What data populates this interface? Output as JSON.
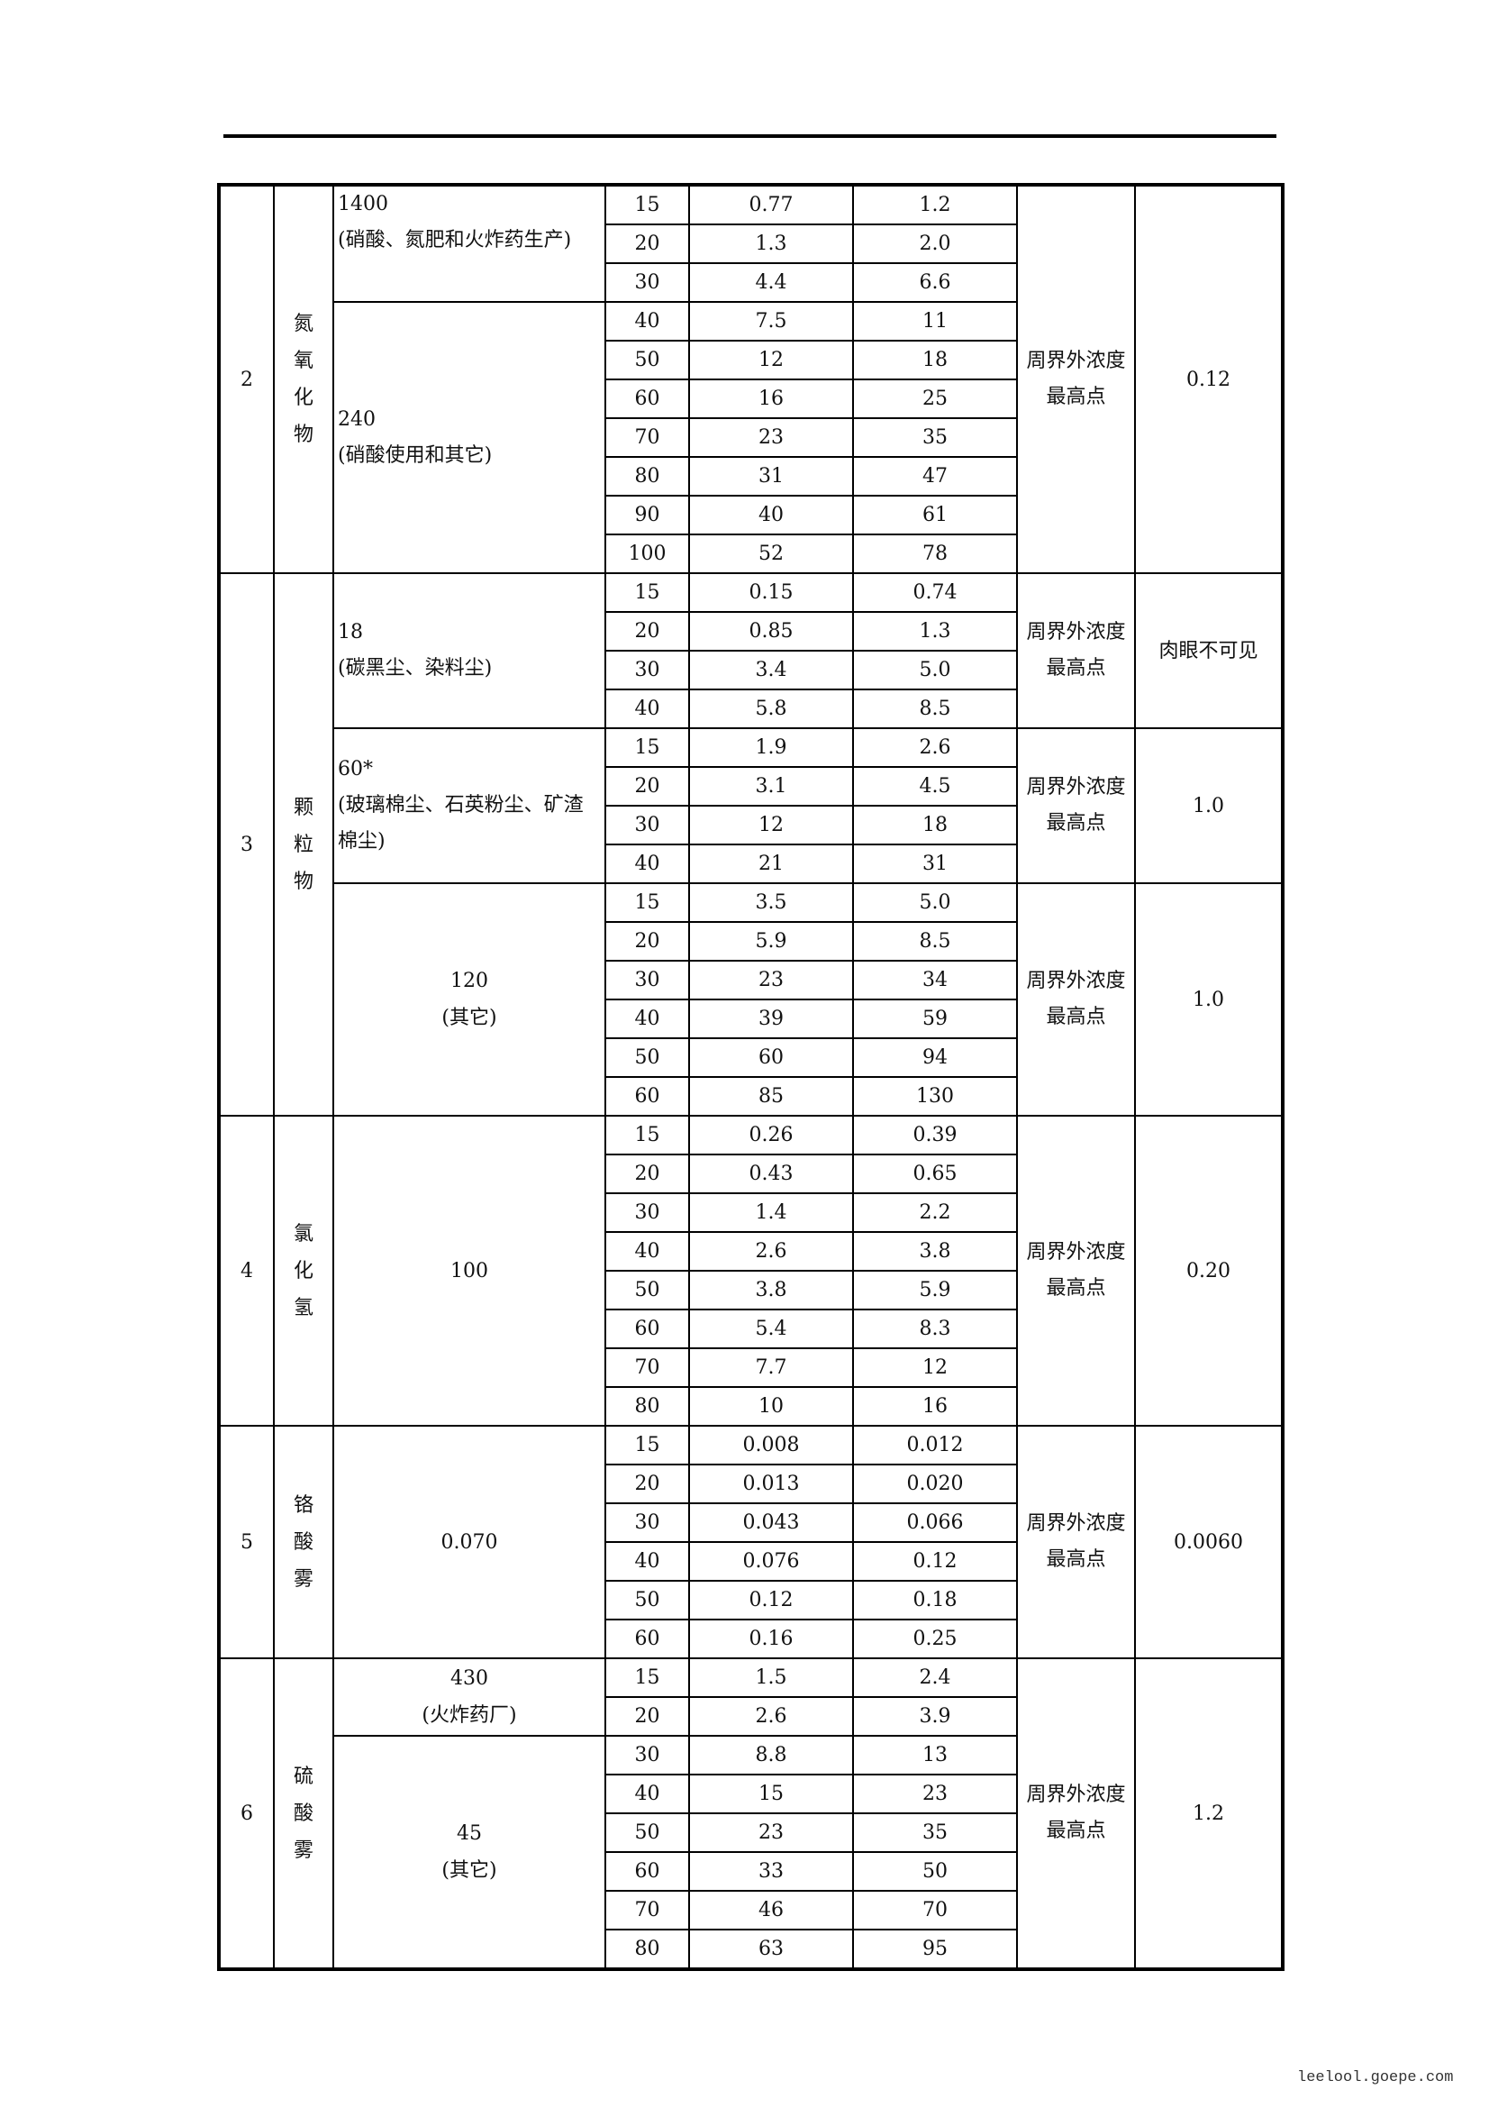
{
  "groups": [
    {
      "no": "2",
      "name": "氮氧化物",
      "blocks": [
        {
          "location": "周界外浓度最高点",
          "limit": "0.12",
          "standards": [
            {
              "value": "1400",
              "note": "(硝酸、氮肥和火炸药生产)",
              "rows": [
                [
                  "15",
                  "0.77",
                  "1.2"
                ],
                [
                  "20",
                  "1.3",
                  "2.0"
                ],
                [
                  "30",
                  "4.4",
                  "6.6"
                ]
              ]
            },
            {
              "value": "240",
              "note": "(硝酸使用和其它)",
              "rows": [
                [
                  "40",
                  "7.5",
                  "11"
                ],
                [
                  "50",
                  "12",
                  "18"
                ],
                [
                  "60",
                  "16",
                  "25"
                ],
                [
                  "70",
                  "23",
                  "35"
                ],
                [
                  "80",
                  "31",
                  "47"
                ],
                [
                  "90",
                  "40",
                  "61"
                ],
                [
                  "100",
                  "52",
                  "78"
                ]
              ]
            }
          ]
        }
      ]
    },
    {
      "no": "3",
      "name": "颗粒物",
      "blocks": [
        {
          "location": "周界外浓度最高点",
          "limit": "肉眼不可见",
          "standards": [
            {
              "value": "18",
              "note": "(碳黑尘、染料尘)",
              "rows": [
                [
                  "15",
                  "0.15",
                  "0.74"
                ],
                [
                  "20",
                  "0.85",
                  "1.3"
                ],
                [
                  "30",
                  "3.4",
                  "5.0"
                ],
                [
                  "40",
                  "5.8",
                  "8.5"
                ]
              ]
            }
          ]
        },
        {
          "location": "周界外浓度最高点",
          "limit": "1.0",
          "standards": [
            {
              "value": "60*",
              "note": "(玻璃棉尘、石英粉尘、矿渣棉尘)",
              "rows": [
                [
                  "15",
                  "1.9",
                  "2.6"
                ],
                [
                  "20",
                  "3.1",
                  "4.5"
                ],
                [
                  "30",
                  "12",
                  "18"
                ],
                [
                  "40",
                  "21",
                  "31"
                ]
              ]
            }
          ]
        },
        {
          "location": "周界外浓度最高点",
          "limit": "1.0",
          "standards": [
            {
              "value": "120",
              "note": "(其它)",
              "rows": [
                [
                  "15",
                  "3.5",
                  "5.0"
                ],
                [
                  "20",
                  "5.9",
                  "8.5"
                ],
                [
                  "30",
                  "23",
                  "34"
                ],
                [
                  "40",
                  "39",
                  "59"
                ],
                [
                  "50",
                  "60",
                  "94"
                ],
                [
                  "60",
                  "85",
                  "130"
                ]
              ]
            }
          ]
        }
      ]
    },
    {
      "no": "4",
      "name": "氯化氢",
      "blocks": [
        {
          "location": "周界外浓度最高点",
          "limit": "0.20",
          "standards": [
            {
              "value": "100",
              "note": "",
              "rows": [
                [
                  "15",
                  "0.26",
                  "0.39"
                ],
                [
                  "20",
                  "0.43",
                  "0.65"
                ],
                [
                  "30",
                  "1.4",
                  "2.2"
                ],
                [
                  "40",
                  "2.6",
                  "3.8"
                ],
                [
                  "50",
                  "3.8",
                  "5.9"
                ],
                [
                  "60",
                  "5.4",
                  "8.3"
                ],
                [
                  "70",
                  "7.7",
                  "12"
                ],
                [
                  "80",
                  "10",
                  "16"
                ]
              ]
            }
          ]
        }
      ]
    },
    {
      "no": "5",
      "name": "铬酸雾",
      "blocks": [
        {
          "location": "周界外浓度最高点",
          "limit": "0.0060",
          "standards": [
            {
              "value": "0.070",
              "note": "",
              "rows": [
                [
                  "15",
                  "0.008",
                  "0.012"
                ],
                [
                  "20",
                  "0.013",
                  "0.020"
                ],
                [
                  "30",
                  "0.043",
                  "0.066"
                ],
                [
                  "40",
                  "0.076",
                  "0.12"
                ],
                [
                  "50",
                  "0.12",
                  "0.18"
                ],
                [
                  "60",
                  "0.16",
                  "0.25"
                ]
              ]
            }
          ]
        }
      ]
    },
    {
      "no": "6",
      "name": "硫酸雾",
      "blocks": [
        {
          "location": "周界外浓度最高点",
          "limit": "1.2",
          "standards": [
            {
              "value": "430",
              "note": "(火炸药厂)",
              "rows": [
                [
                  "15",
                  "1.5",
                  "2.4"
                ],
                [
                  "20",
                  "2.6",
                  "3.9"
                ]
              ]
            },
            {
              "value": "45",
              "note": "(其它)",
              "rows": [
                [
                  "30",
                  "8.8",
                  "13"
                ],
                [
                  "40",
                  "15",
                  "23"
                ],
                [
                  "50",
                  "23",
                  "35"
                ],
                [
                  "60",
                  "33",
                  "50"
                ],
                [
                  "70",
                  "46",
                  "70"
                ],
                [
                  "80",
                  "63",
                  "95"
                ]
              ]
            }
          ]
        }
      ]
    }
  ],
  "watermark": "leelool.goepe.com"
}
